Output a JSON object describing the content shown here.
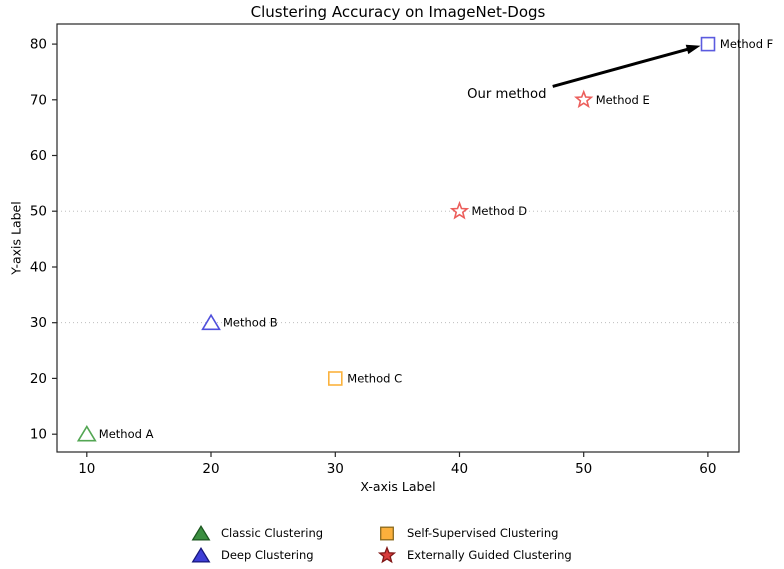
{
  "chart_data": {
    "type": "scatter",
    "title": "Clustering Accuracy on ImageNet-Dogs",
    "xlabel": "X-axis Label",
    "ylabel": "Y-axis Label",
    "xlim": [
      7.6,
      62.5
    ],
    "ylim": [
      6.8,
      83.6
    ],
    "xticks": [
      10,
      20,
      30,
      40,
      50,
      60
    ],
    "yticks": [
      10,
      20,
      30,
      40,
      50,
      60,
      70,
      80
    ],
    "gridlines_y": [
      30,
      50
    ],
    "grid_style": "dotted",
    "grid_color": "#b3b3b3",
    "legend_position": "bottom-center",
    "points": [
      {
        "label": "Method A",
        "x": 10,
        "y": 10,
        "marker": "triangle",
        "edge": "#53a653",
        "fill": "#ffffff"
      },
      {
        "label": "Method B",
        "x": 20,
        "y": 30,
        "marker": "triangle",
        "edge": "#5050dc",
        "fill": "#ffffff"
      },
      {
        "label": "Method C",
        "x": 30,
        "y": 20,
        "marker": "square",
        "edge": "#fbb23e",
        "fill": "#ffffff"
      },
      {
        "label": "Method D",
        "x": 40,
        "y": 50,
        "marker": "star",
        "edge": "#ec5f5c",
        "fill": "#ffffff"
      },
      {
        "label": "Method E",
        "x": 50,
        "y": 70,
        "marker": "star",
        "edge": "#ec5f5c",
        "fill": "#ffffff"
      },
      {
        "label": "Method F",
        "x": 60,
        "y": 80,
        "marker": "square",
        "edge": "#5b5bdf",
        "fill": "#ffffff"
      }
    ],
    "annotation": {
      "text": "Our method",
      "text_anchor_x": 47.0,
      "text_anchor_y": 70.9,
      "arrow_from": [
        47.5,
        72.4
      ],
      "arrow_to": [
        59.4,
        79.7
      ],
      "arrow_color": "#000000"
    },
    "legend": [
      {
        "label": "Classic Clustering",
        "marker": "triangle",
        "fill": "#3b8e40",
        "edge": "#1c5720"
      },
      {
        "label": "Deep Clustering",
        "marker": "triangle",
        "fill": "#3e3ed6",
        "edge": "#17177c"
      },
      {
        "label": "Self-Supervised Clustering",
        "marker": "square",
        "fill": "#fbb03c",
        "edge": "#8a6a1e"
      },
      {
        "label": "Externally Guided Clustering",
        "marker": "star",
        "fill": "#d83c3c",
        "edge": "#801616"
      }
    ]
  }
}
